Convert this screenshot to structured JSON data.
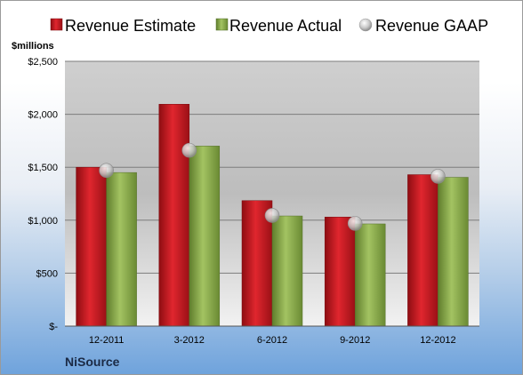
{
  "chart_data": {
    "type": "bar",
    "company": "NiSource",
    "unit_label": "$millions",
    "categories": [
      "12-2011",
      "3-2012",
      "6-2012",
      "9-2012",
      "12-2012"
    ],
    "series": [
      {
        "name": "Revenue Estimate",
        "type": "bar",
        "color": "#c8161d",
        "values": [
          1500,
          2095,
          1185,
          1030,
          1430
        ]
      },
      {
        "name": "Revenue Actual",
        "type": "bar",
        "color": "#8fb04e",
        "values": [
          1450,
          1700,
          1040,
          965,
          1405
        ]
      },
      {
        "name": "Revenue GAAP",
        "type": "marker",
        "color": "#c0c0c0",
        "values": [
          1470,
          1660,
          1045,
          970,
          1415
        ]
      }
    ],
    "y_ticks": [
      {
        "value": 0,
        "label": "$-"
      },
      {
        "value": 500,
        "label": "$500"
      },
      {
        "value": 1000,
        "label": "$1,000"
      },
      {
        "value": 1500,
        "label": "$1,500"
      },
      {
        "value": 2000,
        "label": "$2,000"
      },
      {
        "value": 2500,
        "label": "$2,500"
      }
    ],
    "ylim": [
      0,
      2500
    ],
    "grid": true,
    "legend_position": "top"
  }
}
